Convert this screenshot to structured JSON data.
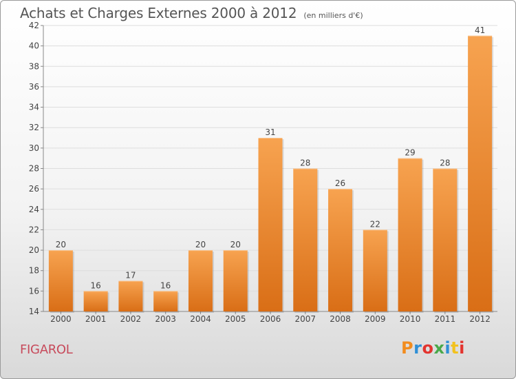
{
  "header": {
    "title": "Achats et Charges Externes 2000 à 2012",
    "subtitle": "(en milliers d'€)"
  },
  "footer": {
    "commune": "FIGAROL",
    "logo_text": "Proxiti",
    "logo_colors": [
      "#f28c1e",
      "#2f8fd6",
      "#e3342f",
      "#4aa84a",
      "#2f8fd6",
      "#f2c21e",
      "#e3342f"
    ]
  },
  "colors": {
    "bar_light": "#f7a350",
    "bar_dark": "#d96e16",
    "grid": "#dddddd",
    "axis_text": "#444444"
  },
  "chart_data": {
    "type": "bar",
    "categories": [
      "2000",
      "2001",
      "2002",
      "2003",
      "2004",
      "2005",
      "2006",
      "2007",
      "2008",
      "2009",
      "2010",
      "2011",
      "2012"
    ],
    "values": [
      20,
      16,
      17,
      16,
      20,
      20,
      31,
      28,
      26,
      22,
      29,
      28,
      41
    ],
    "ylim": [
      14,
      42
    ],
    "yticks": [
      14,
      16,
      18,
      20,
      22,
      24,
      26,
      28,
      30,
      32,
      34,
      36,
      38,
      40,
      42
    ],
    "grid": true,
    "data_labels": true
  }
}
